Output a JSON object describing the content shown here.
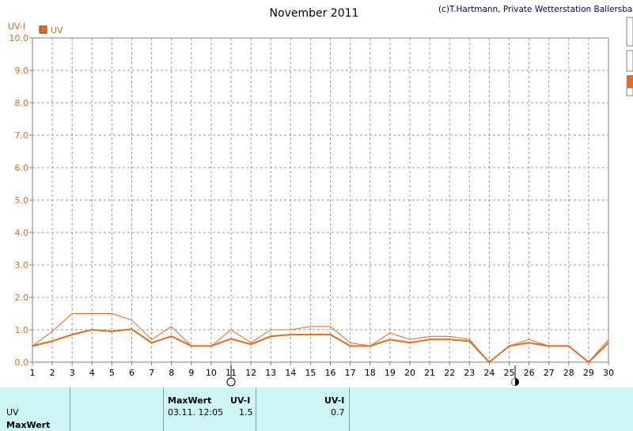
{
  "header": {
    "title": "November 2011",
    "copyright": "(c)T.Hartmann, Private Wetterstation Ballersbach"
  },
  "chart_data": {
    "type": "line",
    "title": "November 2011",
    "ylabel": "UV-I",
    "ylim": [
      0,
      10
    ],
    "yticks": [
      "0.0",
      "1.0",
      "2.0",
      "3.0",
      "4.0",
      "5.0",
      "6.0",
      "7.0",
      "8.0",
      "9.0",
      "10.0"
    ],
    "x": [
      1,
      2,
      3,
      4,
      5,
      6,
      7,
      8,
      9,
      10,
      11,
      12,
      13,
      14,
      15,
      16,
      17,
      18,
      19,
      20,
      21,
      22,
      23,
      24,
      25,
      26,
      27,
      28,
      29,
      30
    ],
    "xlim": [
      1,
      30
    ],
    "grid": true,
    "legend": [
      {
        "label": "UV",
        "color": "#e06c1f"
      }
    ],
    "series": [
      {
        "name": "UV",
        "color": "#e06c1f",
        "width": 2,
        "values": [
          0.5,
          0.65,
          0.85,
          1.0,
          0.95,
          1.02,
          0.6,
          0.8,
          0.5,
          0.5,
          0.72,
          0.55,
          0.8,
          0.85,
          0.85,
          0.85,
          0.5,
          0.5,
          0.7,
          0.6,
          0.7,
          0.7,
          0.65,
          0.0,
          0.5,
          0.6,
          0.5,
          0.5,
          0.0,
          0.6
        ]
      },
      {
        "color": "#e06c1f",
        "width": 1,
        "values": [
          0.5,
          0.95,
          1.5,
          1.5,
          1.5,
          1.3,
          0.7,
          1.1,
          0.5,
          0.5,
          1.0,
          0.6,
          1.0,
          1.0,
          1.1,
          1.1,
          0.6,
          0.5,
          0.9,
          0.7,
          0.8,
          0.8,
          0.7,
          0.0,
          0.5,
          0.7,
          0.5,
          0.5,
          0.0,
          0.7
        ]
      }
    ],
    "moon_markers": [
      {
        "day": 11,
        "phase": "full-moon-icon"
      },
      {
        "day": 25.3,
        "phase": "new-moon-icon"
      }
    ]
  },
  "table": {
    "row1_label": "UV",
    "row2_label": "MaxWert",
    "maxwert_header": "MaxWert",
    "uvi_header_1": "UV-I",
    "uvi_header_2": "UV-I",
    "max_datetime": "03.11.  12:05",
    "max_value": "1.5",
    "avg_value": "0.7"
  }
}
